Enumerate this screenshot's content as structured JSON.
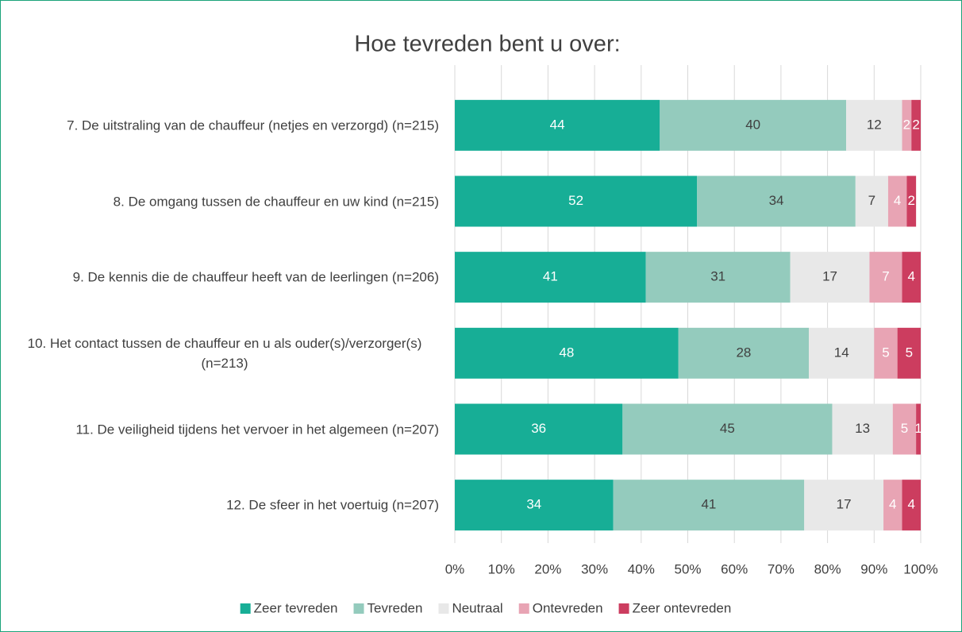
{
  "chart_data": {
    "type": "stacked-bar-horizontal",
    "title": "Hoe tevreden bent u over:",
    "categories": [
      "7. De uitstraling van de chauffeur (netjes en verzorgd) (n=215)",
      "8. De omgang tussen de chauffeur en uw kind (n=215)",
      "9. De kennis die de chauffeur heeft van de leerlingen (n=206)",
      "10. Het contact tussen de chauffeur en u als ouder(s)/verzorger(s) (n=213)",
      "11. De veiligheid tijdens het vervoer in het algemeen (n=207)",
      "12. De sfeer in het voertuig (n=207)"
    ],
    "series": [
      {
        "name": "Zeer tevreden",
        "color": "#17ae96",
        "label_color": "#ffffff",
        "values": [
          44,
          52,
          41,
          48,
          36,
          34
        ]
      },
      {
        "name": "Tevreden",
        "color": "#94cbbd",
        "label_color": "#404040",
        "values": [
          40,
          34,
          31,
          28,
          45,
          41
        ]
      },
      {
        "name": "Neutraal",
        "color": "#e8e8e8",
        "label_color": "#404040",
        "values": [
          12,
          7,
          17,
          14,
          13,
          17
        ]
      },
      {
        "name": "Ontevreden",
        "color": "#e8a4b4",
        "label_color": "#ffffff",
        "values": [
          2,
          4,
          7,
          5,
          5,
          4
        ]
      },
      {
        "name": "Zeer ontevreden",
        "color": "#cc3d5f",
        "label_color": "#ffffff",
        "values": [
          2,
          2,
          4,
          5,
          1,
          4
        ]
      }
    ],
    "xlim": [
      0,
      100
    ],
    "xticks": [
      {
        "value": 0,
        "label": "0%"
      },
      {
        "value": 10,
        "label": "10%"
      },
      {
        "value": 20,
        "label": "20%"
      },
      {
        "value": 30,
        "label": "30%"
      },
      {
        "value": 40,
        "label": "40%"
      },
      {
        "value": 50,
        "label": "50%"
      },
      {
        "value": 60,
        "label": "60%"
      },
      {
        "value": 70,
        "label": "70%"
      },
      {
        "value": 80,
        "label": "80%"
      },
      {
        "value": 90,
        "label": "90%"
      },
      {
        "value": 100,
        "label": "100%"
      }
    ],
    "grid": true,
    "legend": "bottom"
  }
}
